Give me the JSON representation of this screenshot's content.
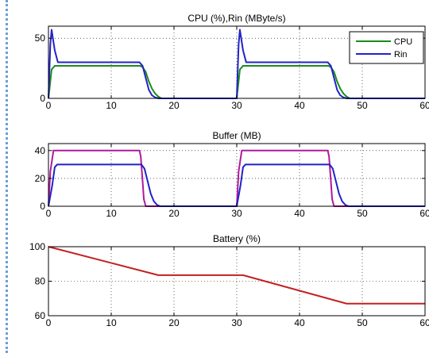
{
  "colors": {
    "cpu": "#1a8c1a",
    "rin": "#2222c8",
    "buffer_a": "#b0199e",
    "buffer_b": "#2222c8",
    "battery": "#c42020"
  },
  "chart_data": [
    {
      "type": "line",
      "title": "CPU (%),Rin (MByte/s)",
      "xlim": [
        0,
        60
      ],
      "ylim": [
        0,
        60
      ],
      "xticks": [
        0,
        10,
        20,
        30,
        40,
        50,
        60
      ],
      "yticks": [
        0,
        50
      ],
      "grid": true,
      "legend": "top-right",
      "series": [
        {
          "name": "CPU",
          "color": "cpu",
          "x": [
            0,
            0.5,
            1,
            14.6,
            15,
            15.5,
            16,
            16.5,
            17,
            17.5,
            18,
            30,
            30.5,
            31,
            44.6,
            45,
            45.5,
            46,
            46.5,
            47,
            47.5,
            48,
            60
          ],
          "y": [
            0,
            24,
            27,
            27,
            26,
            22,
            14,
            8,
            4,
            1.5,
            0,
            0,
            24,
            27,
            27,
            26,
            22,
            14,
            8,
            4,
            1.5,
            0,
            0
          ]
        },
        {
          "name": "Rin",
          "color": "rin",
          "x": [
            0,
            0.3,
            0.5,
            1,
            1.5,
            14.5,
            15,
            15.5,
            16,
            16.5,
            17,
            17.5,
            30,
            30.3,
            30.5,
            31,
            31.5,
            44.5,
            45,
            45.5,
            46,
            46.5,
            47,
            47.5,
            60
          ],
          "y": [
            0,
            45,
            57,
            40,
            30,
            30,
            27,
            17,
            7,
            2.5,
            0.8,
            0,
            0,
            45,
            57,
            40,
            30,
            30,
            27,
            17,
            7,
            2.5,
            0.8,
            0,
            0
          ]
        }
      ]
    },
    {
      "type": "line",
      "title": "Buffer (MB)",
      "xlim": [
        0,
        60
      ],
      "ylim": [
        0,
        45
      ],
      "xticks": [
        0,
        10,
        20,
        30,
        40,
        50,
        60
      ],
      "yticks": [
        0,
        20,
        40
      ],
      "grid": true,
      "series": [
        {
          "color": "buffer_a",
          "x": [
            0,
            0.3,
            0.8,
            14.5,
            14.7,
            15,
            15.2,
            15.5,
            30,
            30.3,
            30.8,
            44.5,
            44.7,
            45,
            45.2,
            45.5,
            60
          ],
          "y": [
            0,
            25,
            40,
            40,
            36,
            18,
            5,
            0,
            0,
            25,
            40,
            40,
            36,
            18,
            5,
            0,
            0
          ]
        },
        {
          "color": "buffer_b",
          "x": [
            0,
            0.6,
            1,
            1.4,
            14.8,
            15.3,
            15.8,
            16.3,
            16.8,
            17.3,
            17.8,
            30,
            30.6,
            31,
            31.4,
            44.8,
            45.3,
            45.8,
            46.3,
            46.8,
            47.3,
            47.8,
            60
          ],
          "y": [
            0,
            15,
            28,
            30,
            30,
            27,
            18,
            9,
            3.5,
            1,
            0,
            0,
            15,
            28,
            30,
            30,
            27,
            18,
            9,
            3.5,
            1,
            0,
            0
          ]
        }
      ]
    },
    {
      "type": "line",
      "title": "Battery (%)",
      "xlim": [
        0,
        60
      ],
      "ylim": [
        60,
        100
      ],
      "xticks": [
        0,
        10,
        20,
        30,
        40,
        50,
        60
      ],
      "yticks": [
        60,
        80,
        100
      ],
      "grid": true,
      "series": [
        {
          "color": "battery",
          "x": [
            0,
            17.5,
            31,
            47.5,
            60
          ],
          "y": [
            100,
            83.5,
            83.5,
            67,
            67
          ]
        }
      ]
    }
  ]
}
